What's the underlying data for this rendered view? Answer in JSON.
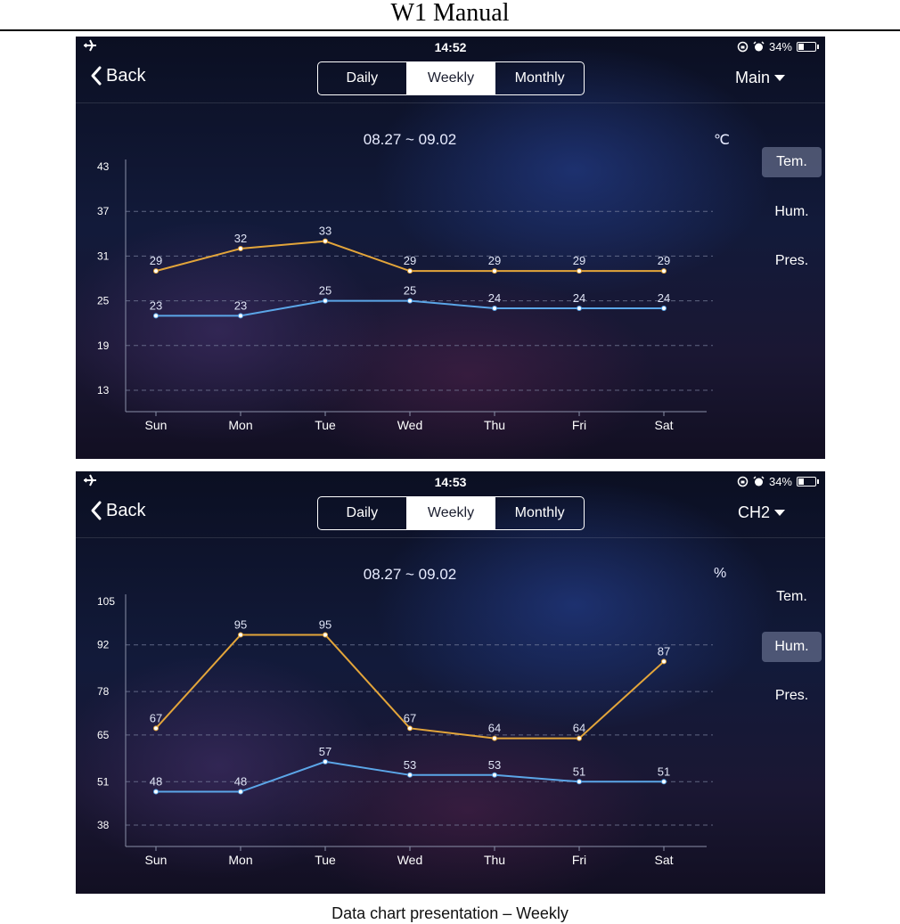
{
  "doc": {
    "title": "W1 Manual",
    "caption": "Data chart presentation – Weekly"
  },
  "colors": {
    "series_high": "#e3a53a",
    "series_low": "#5ba6e8",
    "active_tab_bg": "#9aa0be"
  },
  "screens": [
    {
      "status": {
        "time": "14:52",
        "battery": "34%",
        "battery_level": 0.34,
        "icons": [
          "airplane-icon",
          "rotation-lock-icon",
          "alarm-icon",
          "battery-icon"
        ]
      },
      "nav": {
        "back_label": "Back",
        "tabs": [
          "Daily",
          "Weekly",
          "Monthly"
        ],
        "active_tab": "Weekly",
        "channel": "Main"
      },
      "chart_header": {
        "date_range": "08.27 ~ 09.02",
        "unit": "℃"
      },
      "side_tabs": [
        "Tem.",
        "Hum.",
        "Pres."
      ],
      "active_side_tab": "Tem.",
      "chart_data": {
        "type": "line",
        "categories": [
          "Sun",
          "Mon",
          "Tue",
          "Wed",
          "Thu",
          "Fri",
          "Sat"
        ],
        "y_ticks": [
          43,
          37,
          31,
          25,
          19,
          13
        ],
        "ylim": [
          13,
          43
        ],
        "grid": "dashed horizontal",
        "series": [
          {
            "values": [
              29,
              32,
              33,
              29,
              29,
              29,
              29
            ],
            "color": "#e3a53a"
          },
          {
            "values": [
              23,
              23,
              25,
              25,
              24,
              24,
              24
            ],
            "color": "#5ba6e8"
          }
        ]
      }
    },
    {
      "status": {
        "time": "14:53",
        "battery": "34%",
        "battery_level": 0.34,
        "icons": [
          "airplane-icon",
          "rotation-lock-icon",
          "alarm-icon",
          "battery-icon"
        ]
      },
      "nav": {
        "back_label": "Back",
        "tabs": [
          "Daily",
          "Weekly",
          "Monthly"
        ],
        "active_tab": "Weekly",
        "channel": "CH2"
      },
      "chart_header": {
        "date_range": "08.27 ~ 09.02",
        "unit": "%"
      },
      "side_tabs": [
        "Tem.",
        "Hum.",
        "Pres."
      ],
      "active_side_tab": "Hum.",
      "chart_data": {
        "type": "line",
        "categories": [
          "Sun",
          "Mon",
          "Tue",
          "Wed",
          "Thu",
          "Fri",
          "Sat"
        ],
        "y_ticks": [
          105,
          92,
          78,
          65,
          51,
          38
        ],
        "ylim": [
          38,
          105
        ],
        "grid": "dashed horizontal",
        "series": [
          {
            "values": [
              67,
              95,
              95,
              67,
              64,
              64,
              87
            ],
            "color": "#e3a53a"
          },
          {
            "values": [
              48,
              48,
              57,
              53,
              53,
              51,
              51
            ],
            "color": "#5ba6e8"
          }
        ]
      }
    }
  ]
}
